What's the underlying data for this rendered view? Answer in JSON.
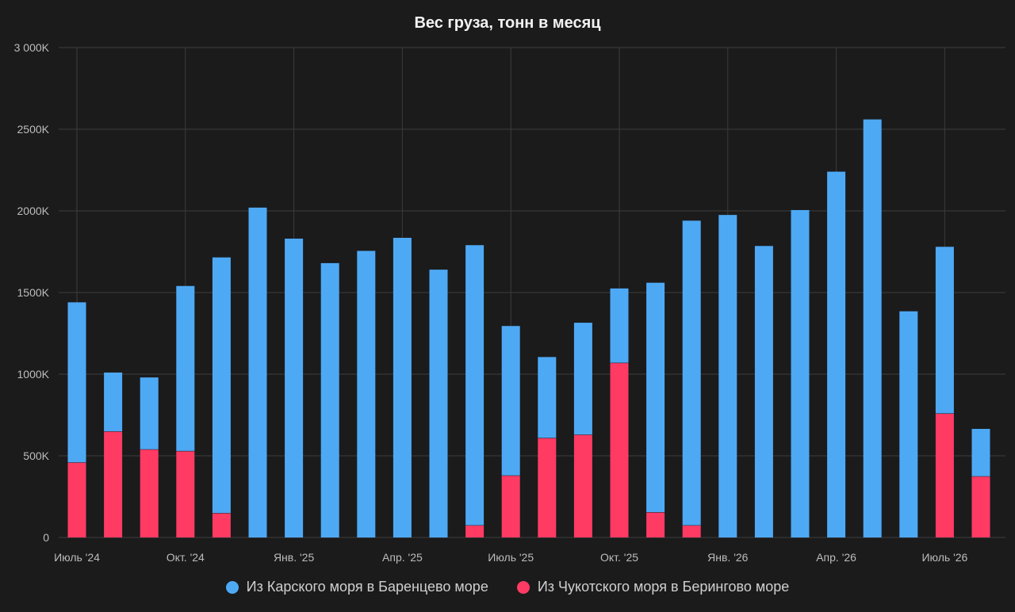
{
  "chart_data": {
    "type": "bar",
    "stacked": true,
    "title": "Вес груза, тонн в месяц",
    "xlabel": "",
    "ylabel": "",
    "ylim": [
      0,
      3000000
    ],
    "y_ticks": [
      0,
      500000,
      1000000,
      1500000,
      2000000,
      2500000,
      3000000
    ],
    "y_tick_labels": [
      "0",
      "500K",
      "1000K",
      "1500K",
      "2000K",
      "2500K",
      "3 000K"
    ],
    "categories": [
      "2024-07",
      "2024-08",
      "2024-09",
      "2024-10",
      "2024-11",
      "2024-12",
      "2025-01",
      "2025-02",
      "2025-03",
      "2025-04",
      "2025-05",
      "2025-06",
      "2025-07",
      "2025-08",
      "2025-09",
      "2025-10",
      "2025-11",
      "2025-12",
      "2026-01",
      "2026-02",
      "2026-03",
      "2026-04",
      "2026-05",
      "2026-06",
      "2026-07",
      "2026-08"
    ],
    "x_tick_labels": [
      {
        "category": "2024-07",
        "label": "Июль '24"
      },
      {
        "category": "2024-10",
        "label": "Окт. '24"
      },
      {
        "category": "2025-01",
        "label": "Янв. '25"
      },
      {
        "category": "2025-04",
        "label": "Апр. '25"
      },
      {
        "category": "2025-07",
        "label": "Июль '25"
      },
      {
        "category": "2025-10",
        "label": "Окт. '25"
      },
      {
        "category": "2026-01",
        "label": "Янв. '26"
      },
      {
        "category": "2026-04",
        "label": "Апр. '26"
      },
      {
        "category": "2026-07",
        "label": "Июль '26"
      }
    ],
    "series": [
      {
        "name": "Из Чукотского моря в Берингово море",
        "color": "#ff3b63",
        "values": [
          460000,
          650000,
          540000,
          530000,
          150000,
          0,
          0,
          0,
          0,
          0,
          0,
          75000,
          380000,
          610000,
          630000,
          1070000,
          155000,
          75000,
          0,
          0,
          0,
          0,
          0,
          0,
          760000,
          375000
        ]
      },
      {
        "name": "Из Карского моря в Баренцево море",
        "color": "#4ea9f5",
        "values": [
          980000,
          360000,
          440000,
          1010000,
          1565000,
          2020000,
          1830000,
          1680000,
          1755000,
          1835000,
          1640000,
          1715000,
          915000,
          495000,
          685000,
          455000,
          1405000,
          1865000,
          1975000,
          1785000,
          2005000,
          2240000,
          2560000,
          1385000,
          1020000,
          290000
        ]
      }
    ],
    "legend_placement": "bottom",
    "legend_order": [
      "Из Карского моря в Баренцево море",
      "Из Чукотского моря в Берингово море"
    ],
    "grid": true,
    "colors": {
      "background": "#1b1b1c",
      "grid": "#3c3c3e",
      "text": "#bcbcbc",
      "title": "#f2f2f2"
    }
  }
}
